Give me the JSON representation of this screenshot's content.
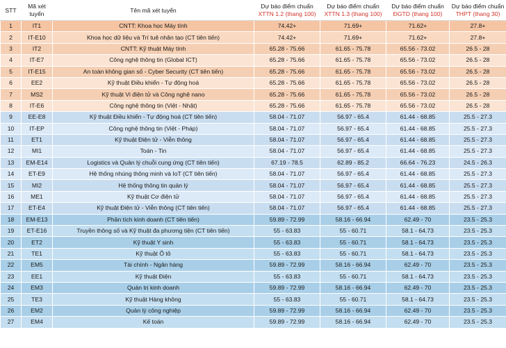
{
  "header": {
    "stt": "STT",
    "code": [
      "Mã xét",
      "tuyển"
    ],
    "name": "Tên mã xét tuyển",
    "xttn12": [
      "Dự báo điểm chuẩn",
      "XTTN 1.2 (thang 100)"
    ],
    "xttn13": [
      "Dự báo điểm chuẩn",
      "XTTN 1.3 (thang 100)"
    ],
    "dgtd": [
      "Dự báo điểm chuẩn",
      "ĐGTD (thang 100)"
    ],
    "thpt": [
      "Dự báo điểm chuẩn",
      "THPT (thang 30)"
    ]
  },
  "colors": {
    "group1": "#f5c4a3",
    "group2": "#f5cfb3",
    "group3": "#c9ddf0",
    "group4": "#a9cfe8",
    "header_accent": "#d1342b"
  },
  "rows": [
    {
      "stt": "1",
      "code": "IT1",
      "name": "CNTT: Khoa học Máy tính",
      "x12": "74.42+",
      "x13": "71.69+",
      "dgtd": "71.62+",
      "thpt": "27.8+",
      "group": "g1"
    },
    {
      "stt": "2",
      "code": "IT-E10",
      "name": "Khoa học dữ liệu và Trí tuệ nhân tạo (CT tiên tiến)",
      "x12": "74.42+",
      "x13": "71.69+",
      "dgtd": "71.62+",
      "thpt": "27.8+",
      "group": "g1"
    },
    {
      "stt": "3",
      "code": "IT2",
      "name": "CNTT: Kỹ thuật Máy tính",
      "x12": "65.28 - 75.66",
      "x13": "61.65 - 75.78",
      "dgtd": "65.56 - 73.02",
      "thpt": "26.5 - 28",
      "group": "g2"
    },
    {
      "stt": "4",
      "code": "IT-E7",
      "name": "Công nghệ thông tin (Global ICT)",
      "x12": "65.28 - 75.66",
      "x13": "61.65 - 75.78",
      "dgtd": "65.56 - 73.02",
      "thpt": "26.5 - 28",
      "group": "g2"
    },
    {
      "stt": "5",
      "code": "IT-E15",
      "name": "An toàn không gian số - Cyber Security (CT tiên tiến)",
      "x12": "65.28 - 75.66",
      "x13": "61.65 - 75.78",
      "dgtd": "65.56 - 73.02",
      "thpt": "26.5 - 28",
      "group": "g2"
    },
    {
      "stt": "6",
      "code": "EE2",
      "name": "Kỹ thuật Điều khiển - Tự động hoá",
      "x12": "65.28 - 75.66",
      "x13": "61.65 - 75.78",
      "dgtd": "65.56 - 73.02",
      "thpt": "26.5 - 28",
      "group": "g2"
    },
    {
      "stt": "7",
      "code": "MS2",
      "name": "Kỹ thuật Vi điện tử và Công nghệ nano",
      "x12": "65.28 - 75.66",
      "x13": "61.65 - 75.78",
      "dgtd": "65.56 - 73.02",
      "thpt": "26.5 - 28",
      "group": "g2"
    },
    {
      "stt": "8",
      "code": "IT-E6",
      "name": "Công nghệ thông tin (Việt - Nhật)",
      "x12": "65.28 - 75.66",
      "x13": "61.65 - 75.78",
      "dgtd": "65.56 - 73.02",
      "thpt": "26.5 - 28",
      "group": "g2"
    },
    {
      "stt": "9",
      "code": "EE-E8",
      "name": "Kỹ thuật Điều khiển - Tự động hoá (CT tiên tiến)",
      "x12": "58.04 - 71.07",
      "x13": "56.97 - 65.4",
      "dgtd": "61.44 - 68.85",
      "thpt": "25.5 - 27.3",
      "group": "g3"
    },
    {
      "stt": "10",
      "code": "IT-EP",
      "name": "Công nghệ thông tin (Việt - Pháp)",
      "x12": "58.04 - 71.07",
      "x13": "56.97 - 65.4",
      "dgtd": "61.44 - 68.85",
      "thpt": "25.5 - 27.3",
      "group": "g3"
    },
    {
      "stt": "11",
      "code": "ET1",
      "name": "Kỹ thuật Điện tử - Viễn thông",
      "x12": "58.04 - 71.07",
      "x13": "56.97 - 65.4",
      "dgtd": "61.44 - 68.85",
      "thpt": "25.5 - 27.3",
      "group": "g3"
    },
    {
      "stt": "12",
      "code": "MI1",
      "name": "Toán - Tin",
      "x12": "58.04 - 71.07",
      "x13": "56.97 - 65.4",
      "dgtd": "61.44 - 68.85",
      "thpt": "25.5 - 27.3",
      "group": "g3"
    },
    {
      "stt": "13",
      "code": "EM-E14",
      "name": "Logistics và Quản lý chuỗi cung ứng (CT tiên tiến)",
      "x12": "67.19 - 78.5",
      "x13": "62.89 - 85.2",
      "dgtd": "66.64 - 76.23",
      "thpt": "24.5 - 26.3",
      "group": "g3"
    },
    {
      "stt": "14",
      "code": "ET-E9",
      "name": "Hệ thống nhúng thông minh và IoT (CT tiên tiến)",
      "x12": "58.04 - 71.07",
      "x13": "56.97 - 65.4",
      "dgtd": "61.44 - 68.85",
      "thpt": "25.5 - 27.3",
      "group": "g3"
    },
    {
      "stt": "15",
      "code": "MI2",
      "name": "Hệ thống thông tin quản lý",
      "x12": "58.04 - 71.07",
      "x13": "56.97 - 65.4",
      "dgtd": "61.44 - 68.85",
      "thpt": "25.5 - 27.3",
      "group": "g3"
    },
    {
      "stt": "16",
      "code": "ME1",
      "name": "Kỹ thuật Cơ điện tử",
      "x12": "58.04 - 71.07",
      "x13": "56.97 - 65.4",
      "dgtd": "61.44 - 68.85",
      "thpt": "25.5 - 27.3",
      "group": "g3"
    },
    {
      "stt": "17",
      "code": "ET-E4",
      "name": "Kỹ thuật Điện tử - Viễn thông (CT tiên tiến)",
      "x12": "58.04 - 71.07",
      "x13": "56.97 - 65.4",
      "dgtd": "61.44 - 68.85",
      "thpt": "25.5 - 27.3",
      "group": "g3"
    },
    {
      "stt": "18",
      "code": "EM-E13",
      "name": "Phân tích kinh doanh (CT tiên tiến)",
      "x12": "59.89 - 72.99",
      "x13": "58.16 - 66.94",
      "dgtd": "62.49 - 70",
      "thpt": "23.5 - 25.3",
      "group": "g4"
    },
    {
      "stt": "19",
      "code": "ET-E16",
      "name": "Truyền thông số và Kỹ thuật đa phương tiện (CT tiên tiến)",
      "x12": "55 - 63.83",
      "x13": "55 - 60.71",
      "dgtd": "58.1 - 64.73",
      "thpt": "23.5 - 25.3",
      "group": "g4"
    },
    {
      "stt": "20",
      "code": "ET2",
      "name": "Kỹ thuật Y sinh",
      "x12": "55 - 63.83",
      "x13": "55 - 60.71",
      "dgtd": "58.1 - 64.73",
      "thpt": "23.5 - 25.3",
      "group": "g4"
    },
    {
      "stt": "21",
      "code": "TE1",
      "name": "Kỹ thuật Ô tô",
      "x12": "55 - 63.83",
      "x13": "55 - 60.71",
      "dgtd": "58.1 - 64.73",
      "thpt": "23.5 - 25.3",
      "group": "g4"
    },
    {
      "stt": "22",
      "code": "EM5",
      "name": "Tài chính - Ngân hàng",
      "x12": "59.89 - 72.99",
      "x13": "58.16 - 66.94",
      "dgtd": "62.49 - 70",
      "thpt": "23.5 - 25.3",
      "group": "g4"
    },
    {
      "stt": "23",
      "code": "EE1",
      "name": "Kỹ thuật Điện",
      "x12": "55 - 63.83",
      "x13": "55 - 60.71",
      "dgtd": "58.1 - 64.73",
      "thpt": "23.5 - 25.3",
      "group": "g4"
    },
    {
      "stt": "24",
      "code": "EM3",
      "name": "Quản trị kinh doanh",
      "x12": "59.89 - 72.99",
      "x13": "58.16 - 66.94",
      "dgtd": "62.49 - 70",
      "thpt": "23.5 - 25.3",
      "group": "g4"
    },
    {
      "stt": "25",
      "code": "TE3",
      "name": "Kỹ thuật Hàng không",
      "x12": "55 - 63.83",
      "x13": "55 - 60.71",
      "dgtd": "58.1 - 64.73",
      "thpt": "23.5 - 25.3",
      "group": "g4"
    },
    {
      "stt": "26",
      "code": "EM2",
      "name": "Quản lý công nghiệp",
      "x12": "59.89 - 72.99",
      "x13": "58.16 - 66.94",
      "dgtd": "62.49 - 70",
      "thpt": "23.5 - 25.3",
      "group": "g4"
    },
    {
      "stt": "27",
      "code": "EM4",
      "name": "Kế toán",
      "x12": "59.89 - 72.99",
      "x13": "58.16 - 66.94",
      "dgtd": "62.49 - 70",
      "thpt": "23.5 - 25.3",
      "group": "g4"
    }
  ]
}
